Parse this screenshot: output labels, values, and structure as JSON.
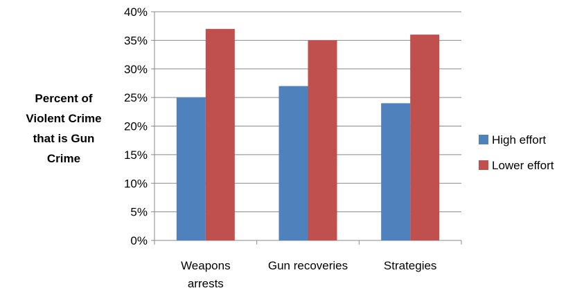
{
  "chart_data": {
    "type": "bar",
    "title": "",
    "ylabel_lines": [
      "Percent of",
      "Violent Crime",
      "that is Gun",
      "Crime"
    ],
    "xlabel": "",
    "categories": [
      [
        "Weapons",
        "arrests"
      ],
      [
        "Gun recoveries"
      ],
      [
        "Strategies"
      ]
    ],
    "series": [
      {
        "name": "High effort",
        "color": "#4f81bd",
        "values": [
          25,
          27,
          24
        ]
      },
      {
        "name": "Lower effort",
        "color": "#c0504d",
        "values": [
          37,
          35,
          36
        ]
      }
    ],
    "ylim": [
      0,
      40
    ],
    "yticks": [
      0,
      5,
      10,
      15,
      20,
      25,
      30,
      35,
      40
    ],
    "ytick_format": "percent",
    "grid": true,
    "legend": "right"
  }
}
